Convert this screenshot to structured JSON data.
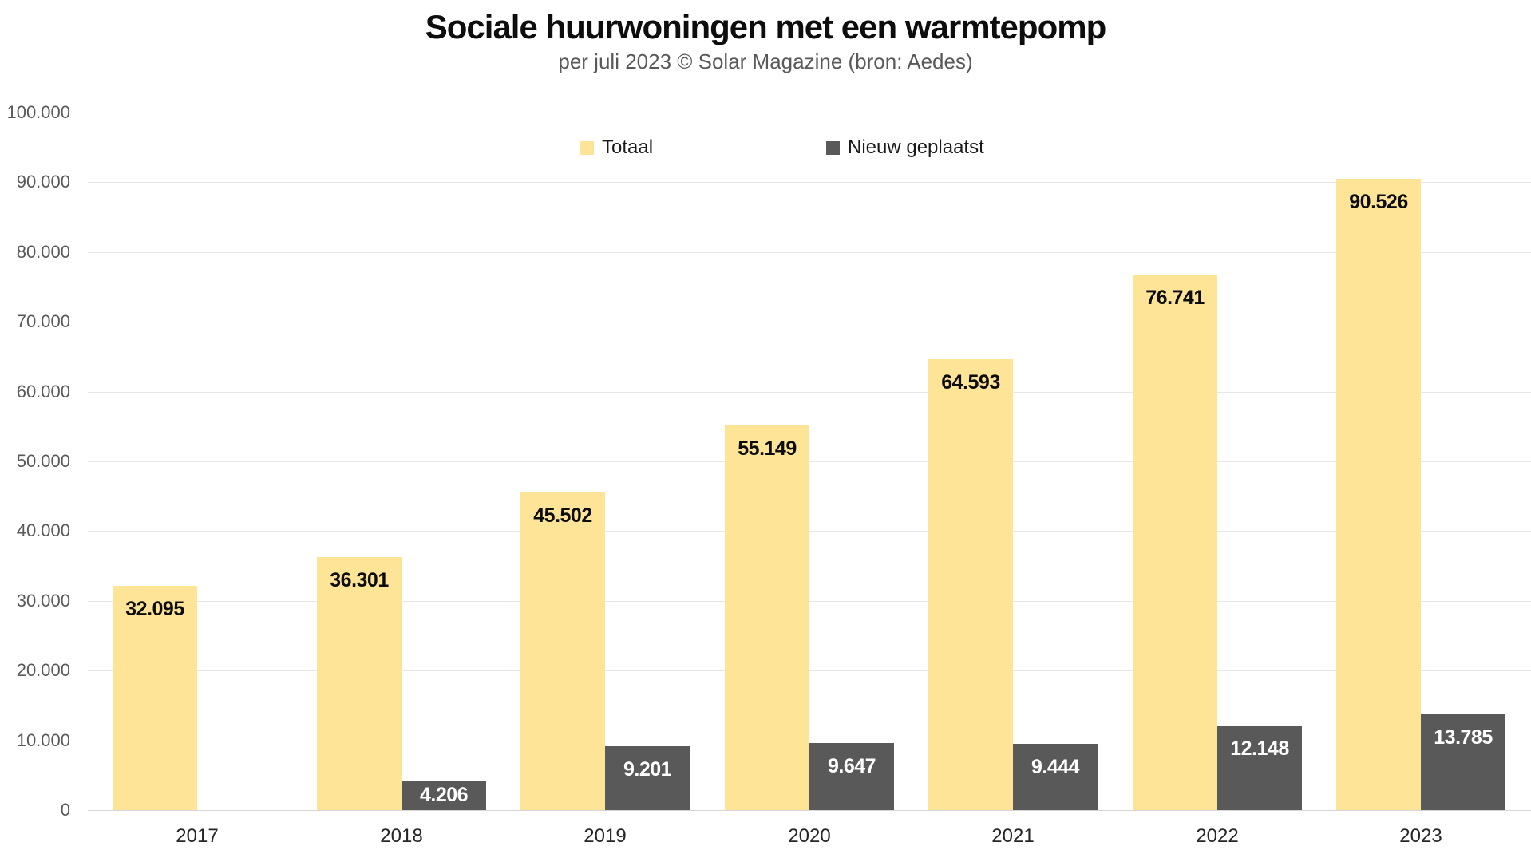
{
  "title": "Sociale huurwoningen met een warmtepomp",
  "subtitle": "per juli 2023 © Solar Magazine (bron: Aedes)",
  "colors": {
    "totaal_bar": "#FDE497",
    "nieuw_bar": "#595959",
    "gridline": "#e7e7e7",
    "baseline": "#d6d6d6",
    "axis_text": "#595959",
    "year_text": "#262626",
    "label_on_light": "#0d0d0d",
    "label_on_dark": "#ffffff"
  },
  "legend": {
    "items": [
      {
        "label": "Totaal",
        "color": "#FDE497"
      },
      {
        "label": "Nieuw geplaatst",
        "color": "#595959"
      }
    ]
  },
  "chart_data": {
    "type": "bar",
    "title": "Sociale huurwoningen met een warmtepomp",
    "subtitle": "per juli 2023 © Solar Magazine (bron: Aedes)",
    "categories": [
      "2017",
      "2018",
      "2019",
      "2020",
      "2021",
      "2022",
      "2023"
    ],
    "series": [
      {
        "name": "Totaal",
        "color": "#FDE497",
        "values": [
          32095,
          36301,
          45502,
          55149,
          64593,
          76741,
          90526
        ],
        "labels": [
          "32.095",
          "36.301",
          "45.502",
          "55.149",
          "64.593",
          "76.741",
          "90.526"
        ],
        "label_color": "#0d0d0d"
      },
      {
        "name": "Nieuw geplaatst",
        "color": "#595959",
        "values": [
          null,
          4206,
          9201,
          9647,
          9444,
          12148,
          13785
        ],
        "labels": [
          "",
          "4.206",
          "9.201",
          "9.647",
          "9.444",
          "12.148",
          "13.785"
        ],
        "label_color": "#ffffff"
      }
    ],
    "ylim": [
      0,
      100000
    ],
    "ytick_step": 10000,
    "ytick_labels": [
      "0",
      "10.000",
      "20.000",
      "30.000",
      "40.000",
      "50.000",
      "60.000",
      "70.000",
      "80.000",
      "90.000",
      "100.000"
    ],
    "grid": true,
    "legend_position": "top-center"
  }
}
